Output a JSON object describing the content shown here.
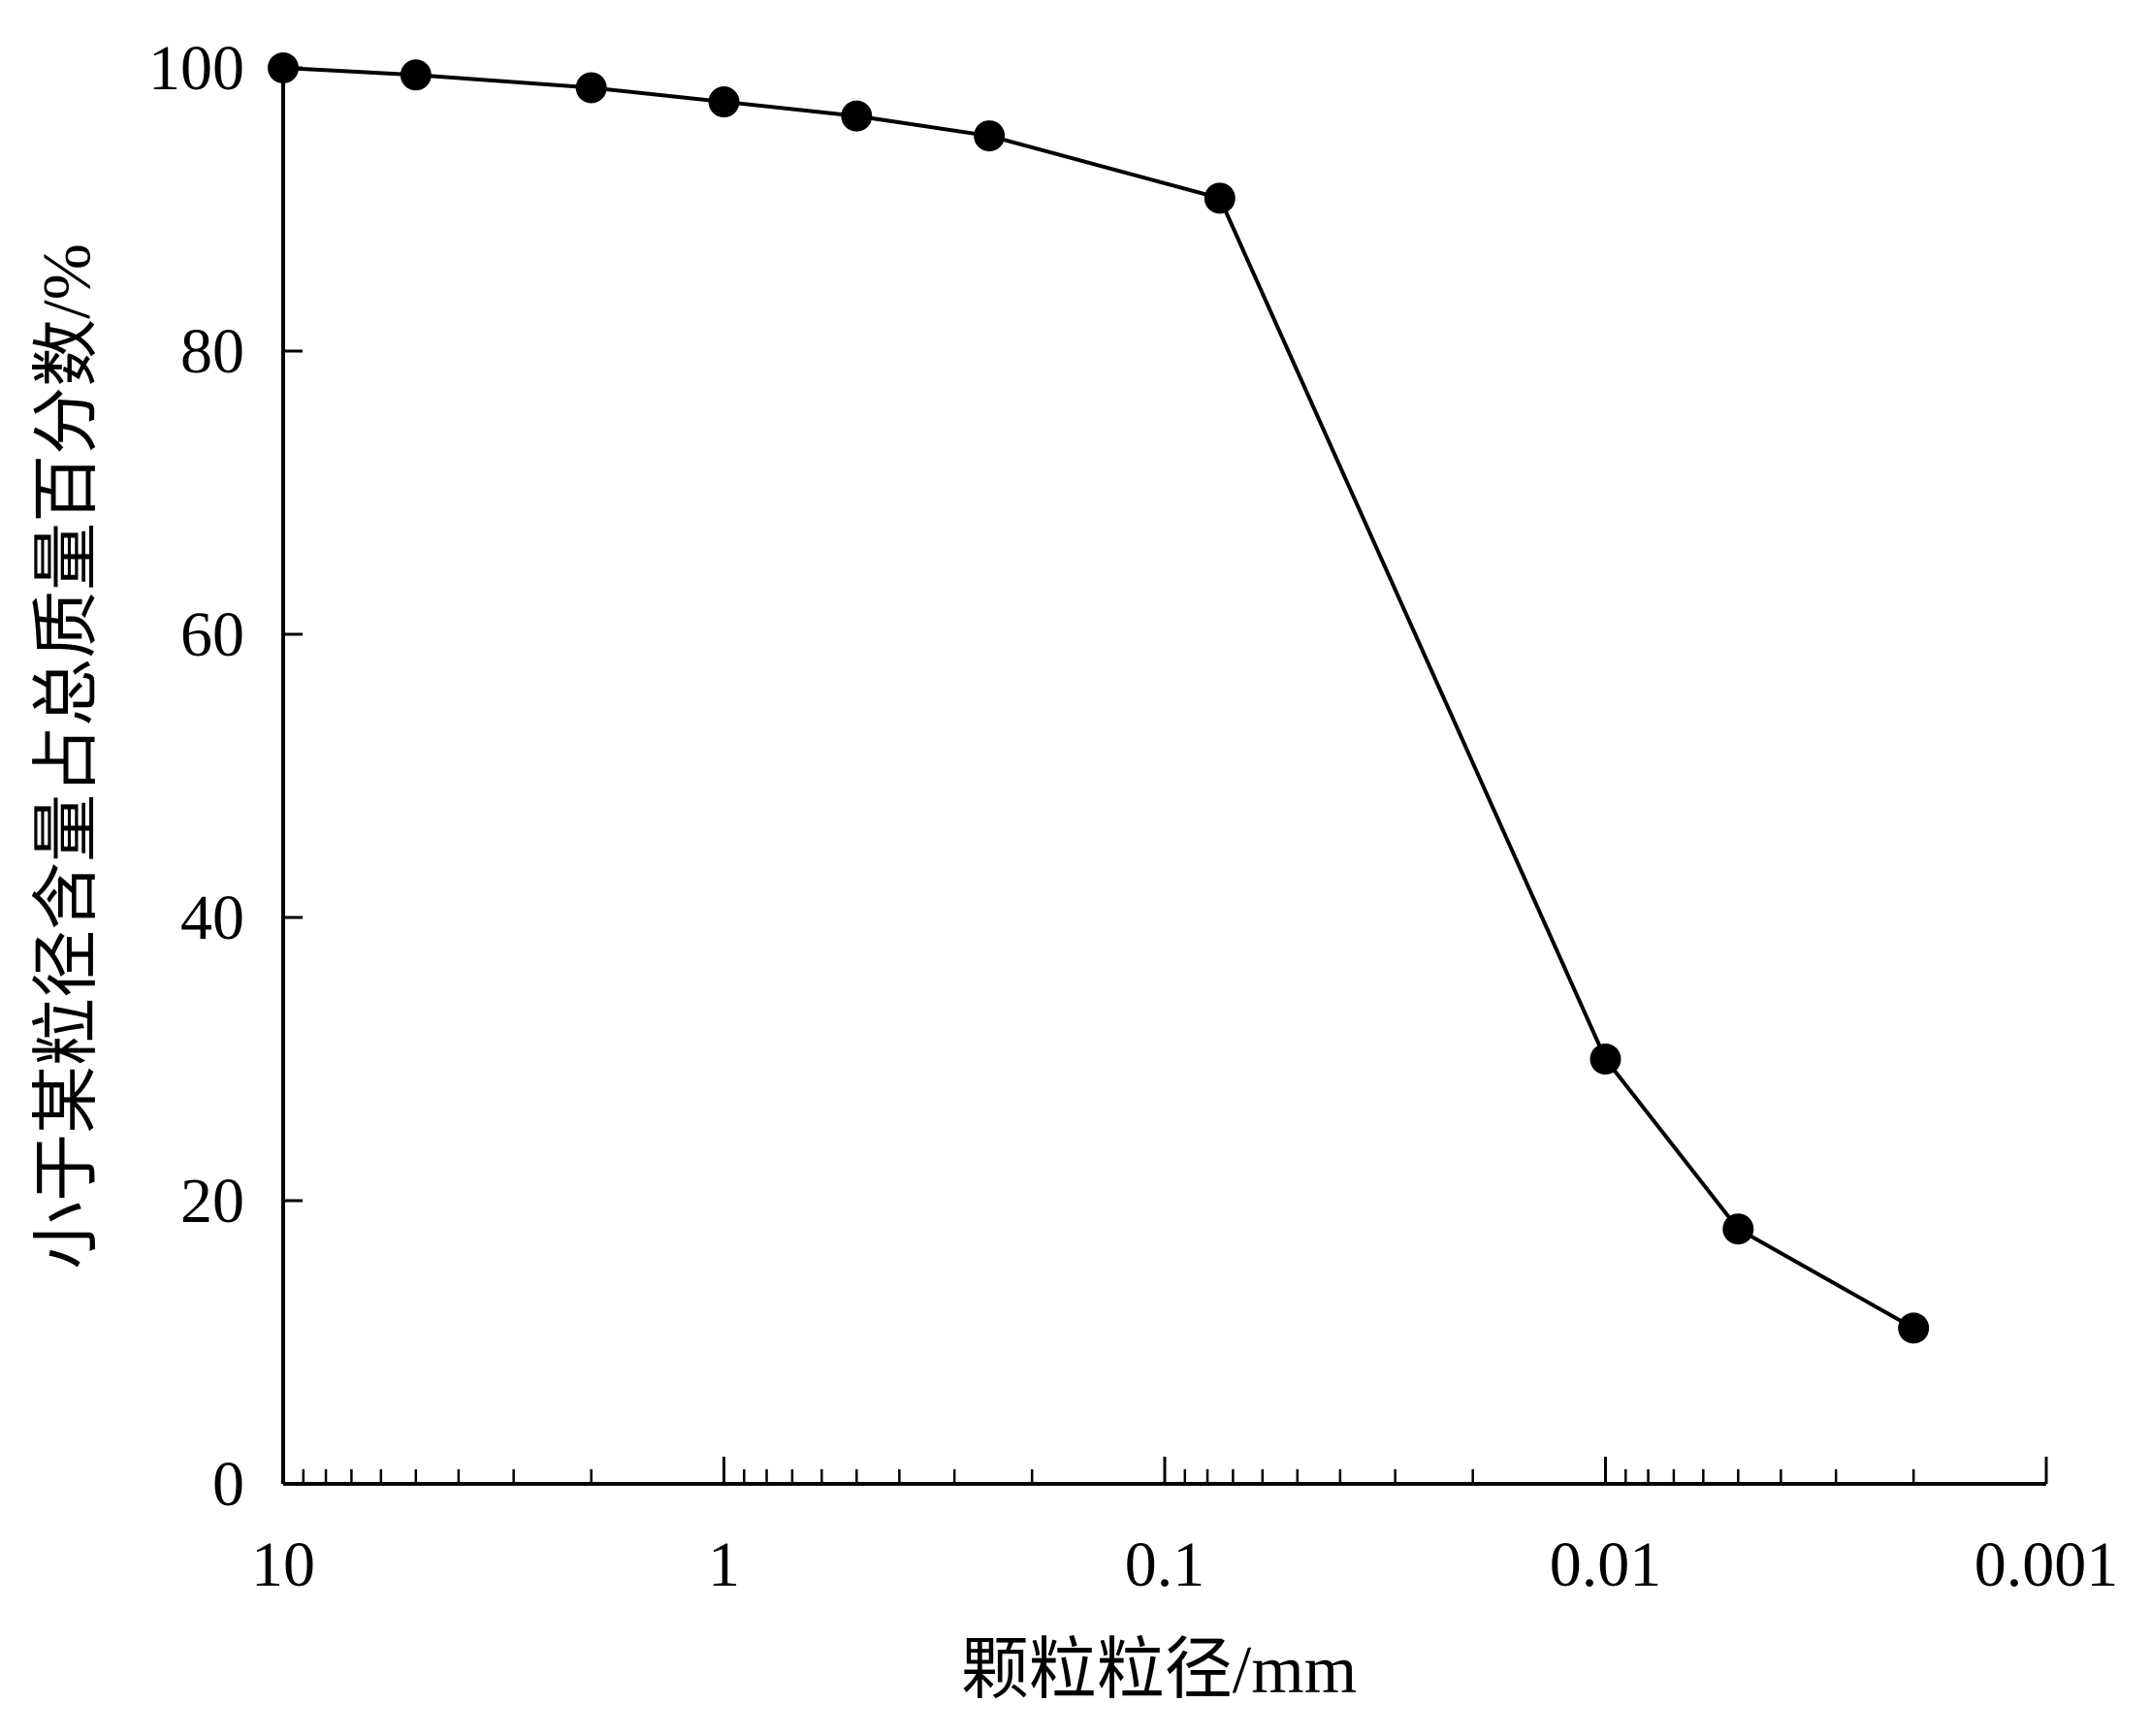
{
  "chart_data": {
    "type": "line",
    "title": "",
    "xlabel": "颗粒粒径/mm",
    "ylabel": "小于某粒径含量占总质量百分数/%",
    "x_scale": "log",
    "x_reversed": true,
    "xlim": [
      10,
      0.001
    ],
    "ylim": [
      0,
      100
    ],
    "x_ticks": [
      10,
      1,
      0.1,
      0.01,
      0.001
    ],
    "x_tick_labels": [
      "10",
      "1",
      "0.1",
      "0.01",
      "0.001"
    ],
    "y_ticks": [
      0,
      20,
      40,
      60,
      80,
      100
    ],
    "y_tick_labels": [
      "0",
      "20",
      "40",
      "60",
      "80",
      "100"
    ],
    "grid": false,
    "series": [
      {
        "x": [
          10,
          5,
          2,
          1,
          0.5,
          0.25,
          0.075,
          0.01,
          0.005,
          0.002
        ],
        "y": [
          100,
          99.5,
          98.6,
          97.6,
          96.6,
          95.2,
          90.8,
          30,
          18,
          11
        ]
      }
    ],
    "colors": {
      "line": "#000000",
      "marker": "#000000",
      "axis": "#000000"
    }
  }
}
